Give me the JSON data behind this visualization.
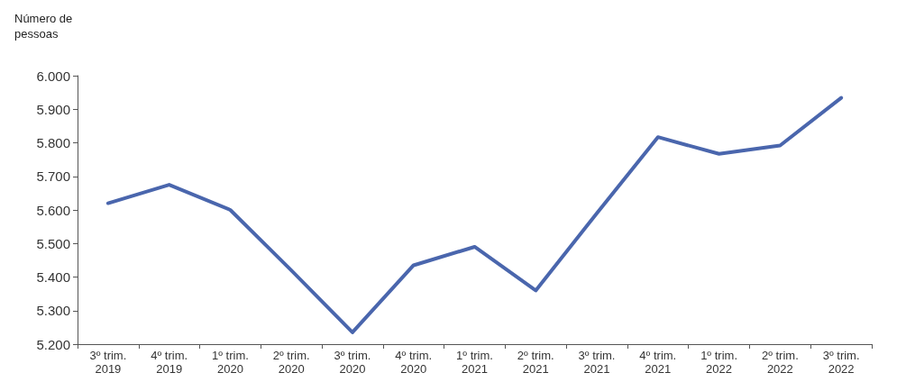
{
  "chart_data": {
    "type": "line",
    "ylabel": "Número de\npessoas",
    "categories": [
      "3º trim.\n2019",
      "4º trim.\n2019",
      "1º trim.\n2020",
      "2º trim.\n2020",
      "3º trim.\n2020",
      "4º trim.\n2020",
      "1º trim.\n2021",
      "2º trim.\n2021",
      "3º trim.\n2021",
      "4º trim.\n2021",
      "1º trim.\n2022",
      "2º trim.\n2022",
      "3º trim.\n2022"
    ],
    "series": [
      {
        "color": "#4a66ad",
        "values": [
          5620,
          5675,
          5600,
          5420,
          5235,
          5435,
          5490,
          5360,
          5590,
          5817,
          5767,
          5792,
          5934
        ]
      }
    ],
    "ylim": [
      5200,
      6000
    ],
    "yticks": [
      {
        "value": 5200,
        "label": "5.200"
      },
      {
        "value": 5300,
        "label": "5.300"
      },
      {
        "value": 5400,
        "label": "5.400"
      },
      {
        "value": 5500,
        "label": "5.500"
      },
      {
        "value": 5600,
        "label": "5.600"
      },
      {
        "value": 5700,
        "label": "5.700"
      },
      {
        "value": 5800,
        "label": "5.800"
      },
      {
        "value": 5900,
        "label": "5.900"
      },
      {
        "value": 6000,
        "label": "6.000"
      }
    ],
    "line_style": "solid"
  }
}
